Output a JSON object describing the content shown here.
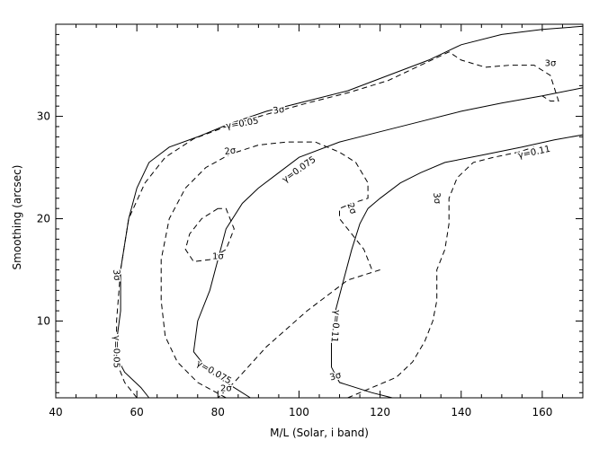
{
  "chart_data": {
    "type": "line",
    "xlabel": "M/L (Solar, i band)",
    "ylabel": "Smoothing (arcsec)",
    "xlim": [
      40,
      170
    ],
    "ylim": [
      2.5,
      39
    ],
    "xticks": [
      40,
      60,
      80,
      100,
      120,
      140,
      160
    ],
    "yticks": [
      10,
      20,
      30
    ],
    "xtick_labels": [
      "40",
      "60",
      "80",
      "100",
      "120",
      "140",
      "160"
    ],
    "ytick_labels": [
      "10",
      "20",
      "30"
    ],
    "grid": false,
    "series": [
      {
        "style": "solid",
        "x": [
          63,
          61,
          57,
          55,
          55,
          56,
          56,
          58,
          60,
          63,
          68,
          75,
          83,
          92,
          102,
          112,
          122,
          132,
          140,
          150,
          160,
          170
        ],
        "y": [
          2.5,
          3.5,
          5,
          6.5,
          8,
          11,
          15,
          20,
          23,
          25.5,
          27,
          28,
          29.3,
          30.5,
          31.5,
          32.5,
          34,
          35.5,
          37,
          38,
          38.5,
          38.8
        ]
      },
      {
        "style": "solid",
        "x": [
          88,
          84,
          78,
          74,
          75,
          78,
          80,
          82,
          86,
          90,
          95,
          100,
          110,
          120,
          130,
          140,
          150,
          160,
          170
        ],
        "y": [
          2.5,
          3.5,
          5,
          7,
          10,
          13,
          16,
          19,
          21.5,
          23,
          24.5,
          26,
          27.5,
          28.5,
          29.5,
          30.5,
          31.3,
          32,
          32.8
        ]
      },
      {
        "style": "solid",
        "x": [
          123,
          118,
          110,
          108,
          108,
          109,
          111,
          113,
          115,
          117,
          120,
          125,
          130,
          136,
          145,
          155,
          163,
          170
        ],
        "y": [
          2.5,
          3,
          4,
          5.5,
          8,
          11,
          14,
          17,
          19.5,
          21,
          22,
          23.5,
          24.5,
          25.5,
          26.2,
          27,
          27.7,
          28.2
        ]
      },
      {
        "style": "dashed",
        "x": [
          60,
          57,
          55,
          55,
          56,
          58,
          62,
          67,
          74,
          82,
          92,
          102,
          112,
          122,
          130,
          137,
          140,
          146,
          152,
          158,
          162,
          164,
          162,
          160
        ],
        "y": [
          2.5,
          4,
          6,
          10,
          15,
          20,
          23.5,
          26,
          27.8,
          29,
          30.2,
          31.3,
          32.3,
          33.5,
          35,
          36.3,
          35.5,
          34.8,
          35,
          35,
          34,
          31.5,
          31.5,
          32
        ]
      },
      {
        "style": "dashed",
        "x": [
          82,
          75,
          70,
          67,
          66,
          66,
          68,
          72,
          77,
          83,
          90,
          97,
          104,
          110,
          114,
          117,
          117,
          113,
          110,
          110,
          113,
          116,
          118
        ],
        "y": [
          2.5,
          4,
          6,
          8.5,
          12,
          16,
          20,
          23,
          25,
          26.3,
          27.2,
          27.5,
          27.5,
          26.5,
          25.5,
          23.5,
          22,
          21.5,
          21,
          20,
          18.5,
          17,
          15
        ]
      },
      {
        "style": "dashed",
        "x": [
          120,
          112,
          102,
          92,
          84,
          80
        ],
        "y": [
          15,
          14,
          11,
          7.5,
          4,
          2.5
        ]
      },
      {
        "style": "dashed",
        "x": [
          112,
          118,
          124,
          128,
          131,
          133,
          134,
          134,
          136,
          137,
          137,
          139,
          143,
          148,
          154,
          158
        ],
        "y": [
          2.5,
          3.5,
          4.5,
          6,
          8,
          10,
          12,
          15,
          17,
          19.5,
          22,
          24,
          25.5,
          26,
          26.5,
          27
        ]
      },
      {
        "style": "dashed",
        "x": [
          80,
          76,
          73,
          72,
          74,
          78,
          82,
          84,
          82,
          80
        ],
        "y": [
          21,
          20,
          18.5,
          17,
          15.8,
          16,
          17,
          19,
          21,
          21
        ]
      }
    ],
    "annotations": [
      {
        "text": "γ=0.05",
        "x": 86,
        "y": 29.3,
        "angle": -10
      },
      {
        "text": "3σ",
        "x": 95,
        "y": 30.6,
        "angle": -10
      },
      {
        "text": "3σ",
        "x": 162,
        "y": 35.2,
        "angle": 0
      },
      {
        "text": "2σ",
        "x": 83,
        "y": 26.6,
        "angle": -8
      },
      {
        "text": "γ=0.075",
        "x": 100,
        "y": 24.8,
        "angle": -35
      },
      {
        "text": "γ=0.11",
        "x": 158,
        "y": 26.5,
        "angle": -12
      },
      {
        "text": "2σ",
        "x": 113,
        "y": 21.0,
        "angle": 70
      },
      {
        "text": "3σ",
        "x": 134,
        "y": 22.0,
        "angle": 85
      },
      {
        "text": "1σ",
        "x": 80,
        "y": 16.3,
        "angle": 0
      },
      {
        "text": "3σ",
        "x": 55,
        "y": 14.5,
        "angle": 85
      },
      {
        "text": "γ=0.05",
        "x": 55,
        "y": 7.0,
        "angle": 90
      },
      {
        "text": "γ=0.11",
        "x": 109,
        "y": 9.5,
        "angle": 95
      },
      {
        "text": "γ=0.075",
        "x": 79,
        "y": 5.0,
        "angle": 30
      },
      {
        "text": "2σ",
        "x": 82,
        "y": 3.4,
        "angle": 0
      },
      {
        "text": "3σ",
        "x": 109,
        "y": 4.6,
        "angle": -15
      }
    ]
  }
}
